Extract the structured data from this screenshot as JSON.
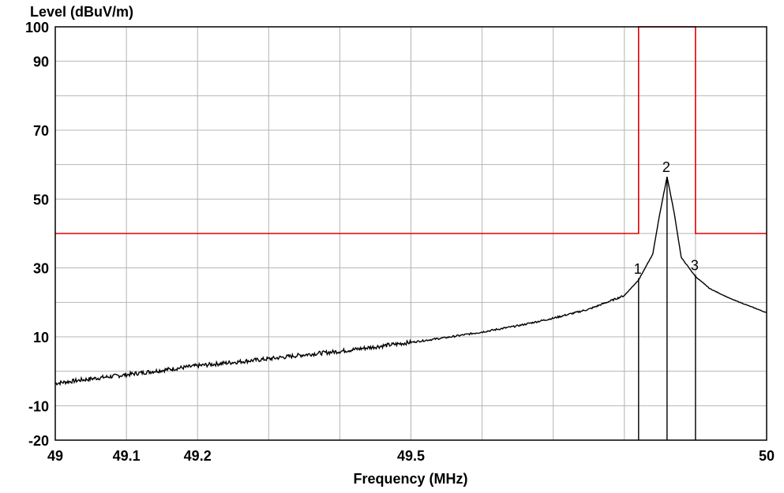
{
  "chart_data": {
    "type": "line",
    "title": "",
    "xlabel": "Frequency (MHz)",
    "ylabel": "Level (dBuV/m)",
    "xlim": [
      49,
      50
    ],
    "ylim": [
      -20,
      100
    ],
    "grid": true,
    "x_ticks": [
      {
        "value": 49,
        "label": "49"
      },
      {
        "value": 49.1,
        "label": "49.1"
      },
      {
        "value": 49.2,
        "label": "49.2"
      },
      {
        "value": 49.5,
        "label": "49.5"
      },
      {
        "value": 50,
        "label": "50"
      }
    ],
    "y_ticks": [
      {
        "value": 100,
        "label": "100"
      },
      {
        "value": 90,
        "label": "90"
      },
      {
        "value": 70,
        "label": "70"
      },
      {
        "value": 50,
        "label": "50"
      },
      {
        "value": 30,
        "label": "30"
      },
      {
        "value": 10,
        "label": "10"
      },
      {
        "value": -10,
        "label": "-10"
      },
      {
        "value": -20,
        "label": "-20"
      }
    ],
    "x_gridlines": [
      49,
      49.1,
      49.2,
      49.3,
      49.4,
      49.5,
      49.6,
      49.7,
      49.8,
      49.9,
      50
    ],
    "y_gridlines": [
      100,
      90,
      80,
      70,
      60,
      50,
      40,
      30,
      20,
      10,
      0,
      -10,
      -20
    ],
    "series": [
      {
        "color": "#000000",
        "x": [
          49.0,
          49.05,
          49.1,
          49.15,
          49.2,
          49.25,
          49.3,
          49.35,
          49.4,
          49.45,
          49.5,
          49.55,
          49.6,
          49.65,
          49.7,
          49.75,
          49.8,
          49.82,
          49.84,
          49.85,
          49.86,
          49.87,
          49.88,
          49.9,
          49.92,
          49.95,
          50.0
        ],
        "y": [
          -3.5,
          -2.2,
          -1.0,
          0.3,
          1.6,
          2.6,
          3.6,
          4.8,
          5.8,
          7.1,
          8.4,
          9.8,
          11.4,
          13.2,
          15.4,
          18.0,
          22.0,
          26.5,
          34.0,
          46.0,
          56.5,
          46.0,
          33.0,
          27.5,
          24.0,
          21.0,
          17.0
        ]
      },
      {
        "color": "#e00000",
        "x": [
          49.0,
          49.82,
          49.82,
          49.9,
          49.9,
          50.0
        ],
        "y": [
          40,
          40,
          100,
          100,
          40,
          40
        ]
      }
    ],
    "markers": [
      {
        "label": "1",
        "x": 49.82,
        "y": 27
      },
      {
        "label": "2",
        "x": 49.86,
        "y": 56.5
      },
      {
        "label": "3",
        "x": 49.9,
        "y": 28
      }
    ]
  }
}
